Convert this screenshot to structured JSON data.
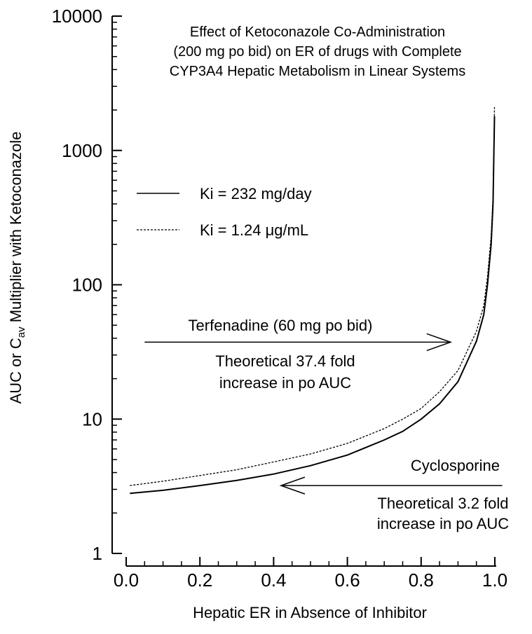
{
  "chart_data": {
    "type": "line",
    "title_lines": [
      "Effect of Ketoconazole Co-Administration",
      "(200 mg po bid) on ER of drugs with Complete",
      "CYP3A4 Hepatic Metabolism in Linear Systems"
    ],
    "xlabel": "Hepatic ER in Absence of Inhibitor",
    "ylabel": {
      "prefix": "AUC or C",
      "subscript": "av",
      "suffix": " Multiplier with Ketoconazole"
    },
    "xlim": [
      0,
      1
    ],
    "ylim": [
      1,
      10000
    ],
    "y_scale": "log",
    "x_ticks": [
      0.0,
      0.2,
      0.4,
      0.6,
      0.8,
      1.0
    ],
    "x_tick_labels": [
      "0.0",
      "0.2",
      "0.4",
      "0.6",
      "0.8",
      "1.0"
    ],
    "y_ticks": [
      1,
      10,
      100,
      1000,
      10000
    ],
    "y_tick_labels": [
      "1",
      "10",
      "100",
      "1000",
      "10000"
    ],
    "grid": false,
    "legend_position": "upper-left",
    "series": [
      {
        "name": "Ki = 232 mg/day",
        "line_style": "solid",
        "x": [
          0.01,
          0.1,
          0.2,
          0.3,
          0.4,
          0.5,
          0.6,
          0.7,
          0.75,
          0.8,
          0.85,
          0.9,
          0.95,
          0.97,
          0.98,
          0.99,
          0.995,
          0.999
        ],
        "y": [
          2.8,
          2.95,
          3.2,
          3.5,
          3.9,
          4.5,
          5.4,
          7.0,
          8.1,
          10.0,
          13.0,
          19.0,
          38.0,
          60.0,
          100.0,
          200.0,
          400.0,
          1800.0
        ]
      },
      {
        "name": "Ki = 1.24 μg/mL",
        "line_style": "dashed",
        "x": [
          0.01,
          0.1,
          0.2,
          0.3,
          0.4,
          0.5,
          0.6,
          0.7,
          0.75,
          0.8,
          0.85,
          0.9,
          0.95,
          0.97,
          0.98,
          0.99,
          0.995,
          0.999
        ],
        "y": [
          3.2,
          3.45,
          3.8,
          4.2,
          4.8,
          5.5,
          6.6,
          8.5,
          10.0,
          12.0,
          16.0,
          23.0,
          45.0,
          70.0,
          115.0,
          230.0,
          450.0,
          2100.0
        ]
      }
    ],
    "legend": [
      {
        "label": "Ki = 232 mg/day",
        "line_style": "solid"
      },
      {
        "label": "Ki = 1.24 μg/mL",
        "line_style": "dashed"
      }
    ],
    "annotations": [
      {
        "drug_label": "Terfenadine (60 mg po bid)",
        "lines": [
          "Theoretical 37.4 fold",
          "increase in po AUC"
        ],
        "arrow": {
          "x_from": 0.05,
          "x_to": 0.88,
          "y": 37.4,
          "direction": "right"
        }
      },
      {
        "drug_label": "Cyclosporine",
        "lines": [
          "Theoretical 3.2 fold",
          "increase in po AUC"
        ],
        "arrow": {
          "x_from": 1.02,
          "x_to": 0.42,
          "y": 3.2,
          "direction": "left"
        }
      }
    ]
  }
}
